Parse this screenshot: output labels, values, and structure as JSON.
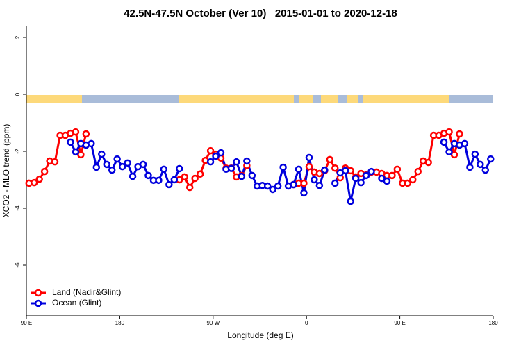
{
  "chart_data": {
    "type": "line",
    "title": "42.5N-47.5N October (Ver 10)   2015-01-01 to 2020-12-18",
    "xlabel": "Longitude (deg E)",
    "ylabel": "XCO2 - MLO trend (ppm)",
    "xlim": [
      90,
      540
    ],
    "ylim": [
      -7.78,
      2.39
    ],
    "xticks": [
      {
        "value": 90,
        "label": "90 E"
      },
      {
        "value": 180,
        "label": "180"
      },
      {
        "value": 270,
        "label": "90 W"
      },
      {
        "value": 360,
        "label": "0"
      },
      {
        "value": 450,
        "label": "90 E"
      },
      {
        "value": 540,
        "label": "180"
      }
    ],
    "yticks": [
      2,
      0,
      -2,
      -4,
      -6
    ],
    "legend": "bottom-left",
    "x": [
      92.5,
      97.5,
      102.5,
      107.5,
      112.5,
      117.5,
      122.5,
      127.5,
      132.5,
      137.5,
      142.5,
      147.5,
      152.5,
      157.5,
      162.5,
      167.5,
      172.5,
      177.5,
      182.5,
      187.5,
      192.5,
      197.5,
      202.5,
      207.5,
      212.5,
      217.5,
      222.5,
      227.5,
      232.5,
      237.5,
      242.5,
      247.5,
      252.5,
      257.5,
      262.5,
      267.5,
      272.5,
      277.5,
      282.5,
      287.5,
      292.5,
      297.5,
      302.5,
      307.5,
      312.5,
      317.5,
      322.5,
      327.5,
      332.5,
      337.5,
      342.5,
      347.5,
      352.5,
      357.5,
      362.5,
      367.5,
      372.5,
      377.5,
      382.5,
      387.5,
      392.5,
      397.5,
      402.5,
      407.5,
      412.5,
      417.5,
      422.5,
      427.5,
      432.5,
      437.5,
      442.5,
      447.5,
      452.5,
      457.5,
      462.5,
      467.5,
      472.5,
      477.5,
      482.5,
      487.5,
      492.5,
      497.5,
      502.5,
      507.5,
      512.5,
      517.5,
      522.5,
      527.5,
      532.5,
      537.5
    ],
    "series": [
      {
        "name": "Land (Nadir&Glint)",
        "color": "#ff0000",
        "values": [
          -3.12,
          -3.1,
          -2.98,
          -2.71,
          -2.34,
          -2.37,
          -1.44,
          -1.44,
          -1.37,
          -1.32,
          -2.12,
          -1.39,
          null,
          null,
          null,
          null,
          null,
          null,
          null,
          null,
          null,
          null,
          null,
          null,
          null,
          null,
          null,
          null,
          null,
          -3.0,
          -2.9,
          -3.27,
          -2.95,
          -2.8,
          -2.32,
          -1.98,
          -2.1,
          -2.24,
          -2.59,
          -2.59,
          -2.9,
          -2.85,
          -2.5,
          null,
          null,
          null,
          null,
          null,
          null,
          null,
          null,
          -3.17,
          -3.12,
          -3.12,
          -2.54,
          -2.73,
          -2.78,
          -2.68,
          -2.29,
          -2.59,
          -2.93,
          -2.59,
          -2.68,
          -2.9,
          -2.78,
          -2.83,
          -2.73,
          -2.73,
          -2.78,
          -2.85,
          -2.85,
          -2.63,
          -3.12,
          -3.12,
          -3.0,
          -2.71,
          -2.34,
          -2.39,
          -1.44,
          -1.44,
          -1.37,
          -1.32,
          -2.12,
          -1.39,
          null,
          null,
          null,
          null,
          null,
          null
        ]
      },
      {
        "name": "Ocean (Glint)",
        "color": "#0000dd",
        "values": [
          null,
          null,
          null,
          null,
          null,
          null,
          null,
          null,
          -1.68,
          -2.02,
          -1.73,
          -1.78,
          -1.73,
          -2.56,
          -2.1,
          -2.46,
          -2.66,
          -2.27,
          -2.54,
          -2.41,
          -2.88,
          -2.54,
          -2.46,
          -2.85,
          -3.02,
          -3.02,
          -2.63,
          -3.17,
          -3.0,
          -2.61,
          null,
          null,
          null,
          null,
          null,
          -2.37,
          -2.17,
          -2.05,
          -2.63,
          -2.6,
          -2.37,
          -2.88,
          -2.34,
          -2.85,
          -3.22,
          -3.2,
          -3.22,
          -3.34,
          -3.22,
          -2.56,
          -3.22,
          -3.17,
          -2.63,
          -3.46,
          -2.22,
          -3.0,
          -3.2,
          -2.66,
          null,
          -3.12,
          -2.76,
          -2.68,
          -3.76,
          -2.95,
          -3.1,
          -2.85,
          -2.71,
          null,
          -2.95,
          -3.05,
          null,
          null,
          null,
          null,
          null,
          null,
          null,
          null,
          null,
          null,
          -1.68,
          -2.02,
          -1.73,
          -1.78,
          -1.73,
          -2.56,
          -2.1,
          -2.46,
          -2.66,
          -2.27
        ]
      }
    ]
  }
}
